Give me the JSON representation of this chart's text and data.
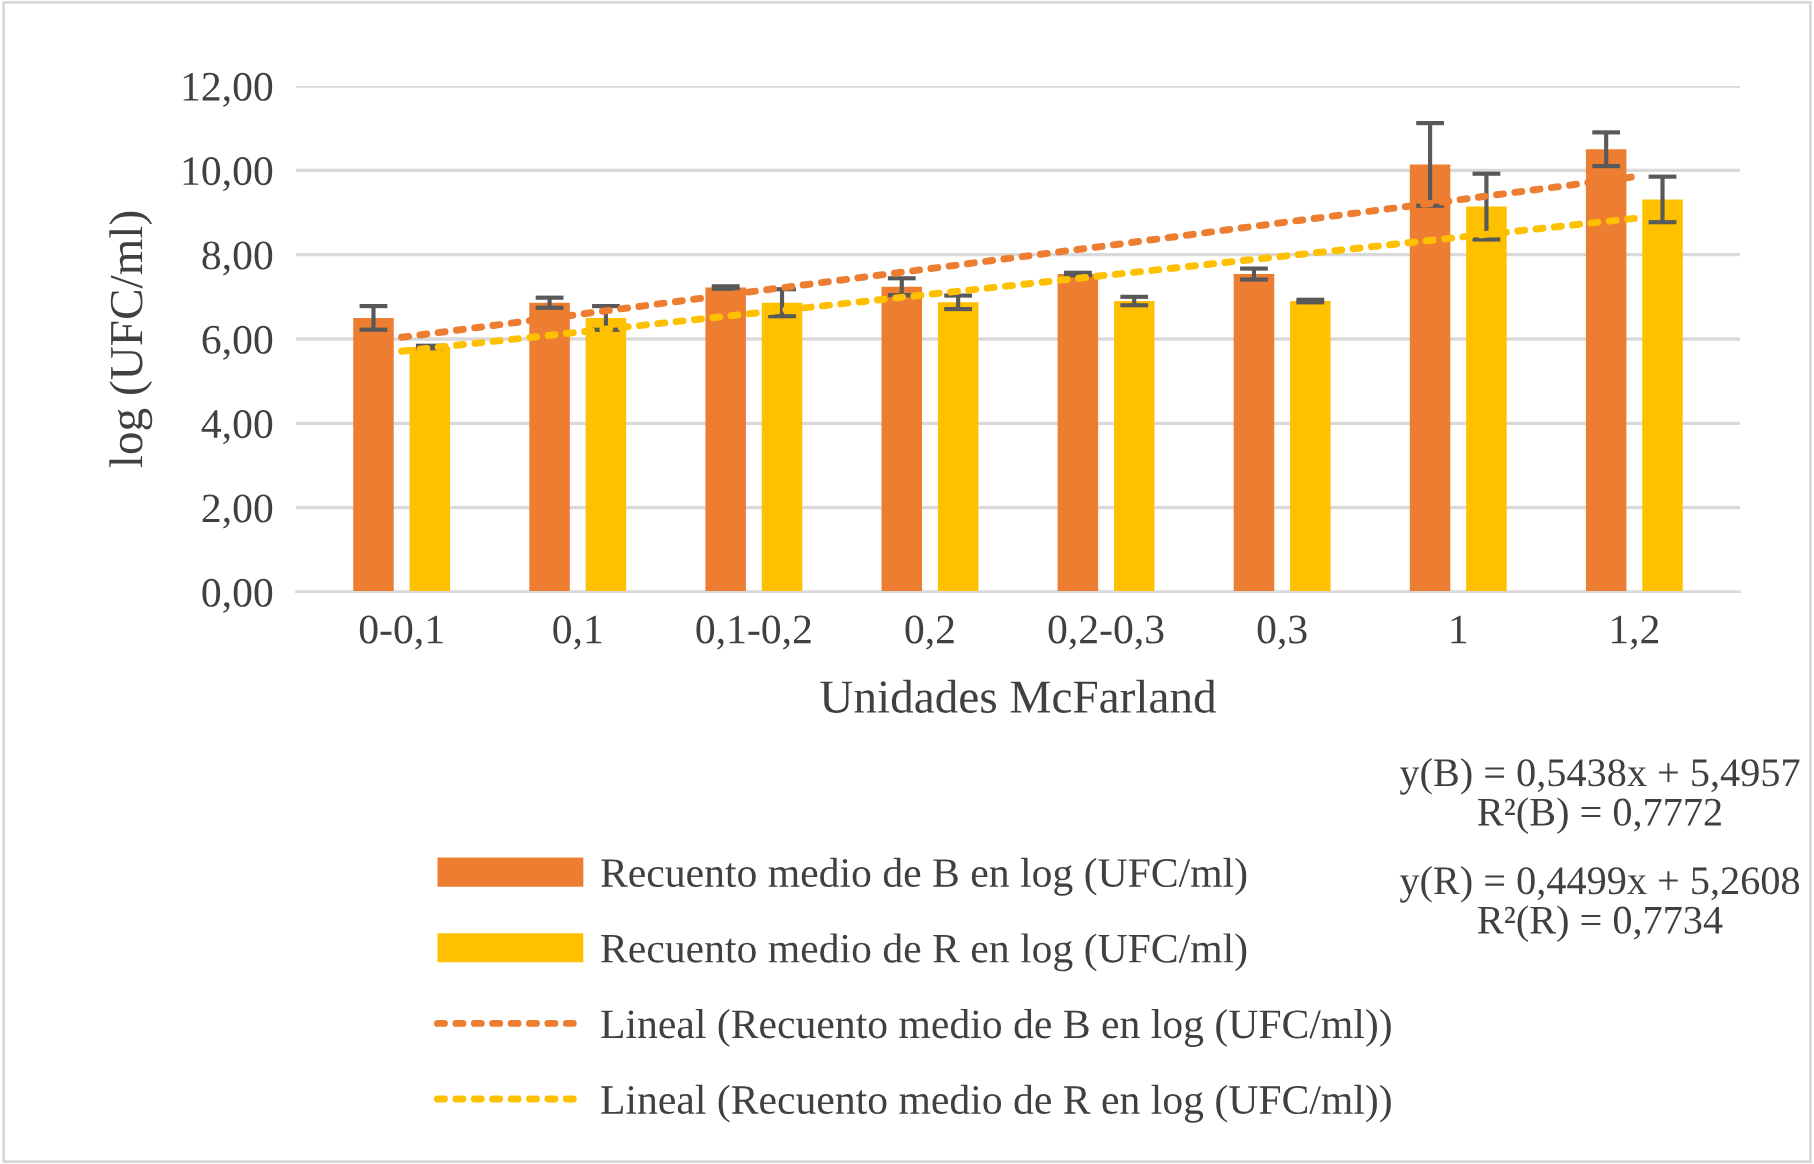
{
  "chart_data": {
    "type": "bar",
    "xlabel": "Unidades McFarland",
    "ylabel": "log (UFC/ml)",
    "categories": [
      "0-0,1",
      "0,1",
      "0,1-0,2",
      "0,2",
      "0,2-0,3",
      "0,3",
      "1",
      "1,2"
    ],
    "series": [
      {
        "name": "Recuento medio de B en log (UFC/ml)",
        "color": "#ed7d31",
        "values": [
          6.5,
          6.86,
          7.22,
          7.24,
          7.54,
          7.54,
          10.14,
          10.5
        ],
        "errors": [
          0.28,
          0.12,
          0.03,
          0.2,
          0.03,
          0.13,
          0.98,
          0.4
        ]
      },
      {
        "name": "Recuento medio de R en log (UFC/ml)",
        "color": "#ffc000",
        "values": [
          5.81,
          6.5,
          6.86,
          6.87,
          6.9,
          6.9,
          9.14,
          9.31
        ],
        "errors": [
          0.03,
          0.28,
          0.32,
          0.16,
          0.1,
          0.03,
          0.78,
          0.54
        ]
      },
      {
        "name": "Lineal (Recuento medio de B en log (UFC/ml))",
        "type": "line",
        "line_style": "dotted",
        "color": "#ed7d31",
        "values": [
          6.04,
          6.58,
          7.13,
          7.67,
          8.21,
          8.76,
          9.3,
          9.85
        ]
      },
      {
        "name": "Lineal (Recuento medio de R en log (UFC/ml))",
        "type": "line",
        "line_style": "dotted",
        "color": "#ffc000",
        "values": [
          5.71,
          6.16,
          6.61,
          7.06,
          7.51,
          7.96,
          8.41,
          8.86
        ]
      }
    ],
    "ylim": [
      0,
      12
    ],
    "yticks": [
      {
        "value": 0,
        "label": "0,00"
      },
      {
        "value": 2,
        "label": "2,00"
      },
      {
        "value": 4,
        "label": "4,00"
      },
      {
        "value": 6,
        "label": "6,00"
      },
      {
        "value": 8,
        "label": "8,00"
      },
      {
        "value": 10,
        "label": "10,00"
      },
      {
        "value": 12,
        "label": "12,00"
      }
    ],
    "grid": "y",
    "legend": "bottom",
    "annotations": [
      "y(B) = 0,5438x + 5,4957\nR²(B) = 0,7772",
      "y(R) = 0,4499x + 5,2608\nR²(R) = 0,7734"
    ]
  }
}
